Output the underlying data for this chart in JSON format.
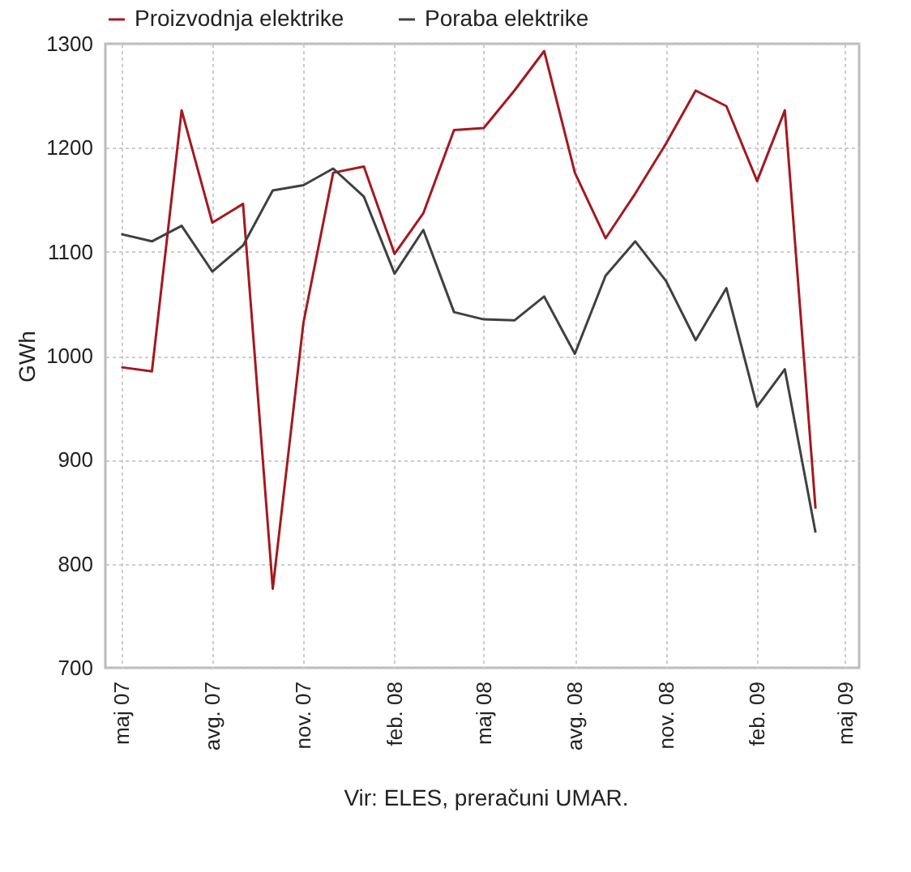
{
  "chart_data": {
    "type": "line",
    "ylabel": "GWh",
    "x": [
      "2007-05",
      "2007-06",
      "2007-07",
      "2007-08",
      "2007-09",
      "2007-10",
      "2007-11",
      "2007-12",
      "2008-01",
      "2008-02",
      "2008-03",
      "2008-04",
      "2008-05",
      "2008-06",
      "2008-07",
      "2008-08",
      "2008-09",
      "2008-10",
      "2008-11",
      "2008-12",
      "2009-01",
      "2009-02",
      "2009-03",
      "2009-04"
    ],
    "series": [
      {
        "name": "Proizvodnja elektrike",
        "color": "#a3191f",
        "values": [
          989,
          985,
          1236,
          1128,
          1146,
          776,
          1032,
          1176,
          1182,
          1098,
          1137,
          1217,
          1219,
          1255,
          1293,
          1176,
          1113,
          1156,
          1204,
          1255,
          1240,
          1168,
          1236,
          853
        ]
      },
      {
        "name": "Poraba elektrike",
        "color": "#404040",
        "values": [
          1117,
          1110,
          1125,
          1081,
          1106,
          1159,
          1164,
          1180,
          1153,
          1079,
          1121,
          1042,
          1035,
          1034,
          1057,
          1002,
          1077,
          1110,
          1072,
          1015,
          1065,
          951,
          987,
          830
        ]
      }
    ],
    "xlim": [
      "2007-04-15",
      "2009-05-15"
    ],
    "xticks": [
      {
        "value": "2007-05",
        "label": "maj 07"
      },
      {
        "value": "2007-08",
        "label": "avg. 07"
      },
      {
        "value": "2007-11",
        "label": "nov. 07"
      },
      {
        "value": "2008-02",
        "label": "feb. 08"
      },
      {
        "value": "2008-05",
        "label": "maj 08"
      },
      {
        "value": "2008-08",
        "label": "avg. 08"
      },
      {
        "value": "2008-11",
        "label": "nov. 08"
      },
      {
        "value": "2009-02",
        "label": "feb. 09"
      },
      {
        "value": "2009-05",
        "label": "maj 09"
      }
    ],
    "ylim": [
      700,
      1300
    ],
    "yticks": [
      700,
      800,
      900,
      1000,
      1100,
      1200,
      1300
    ],
    "grid": true,
    "legend": "top",
    "line_style": "solid",
    "annotations": [
      "Vir: ELES, preračuni UMAR."
    ]
  }
}
